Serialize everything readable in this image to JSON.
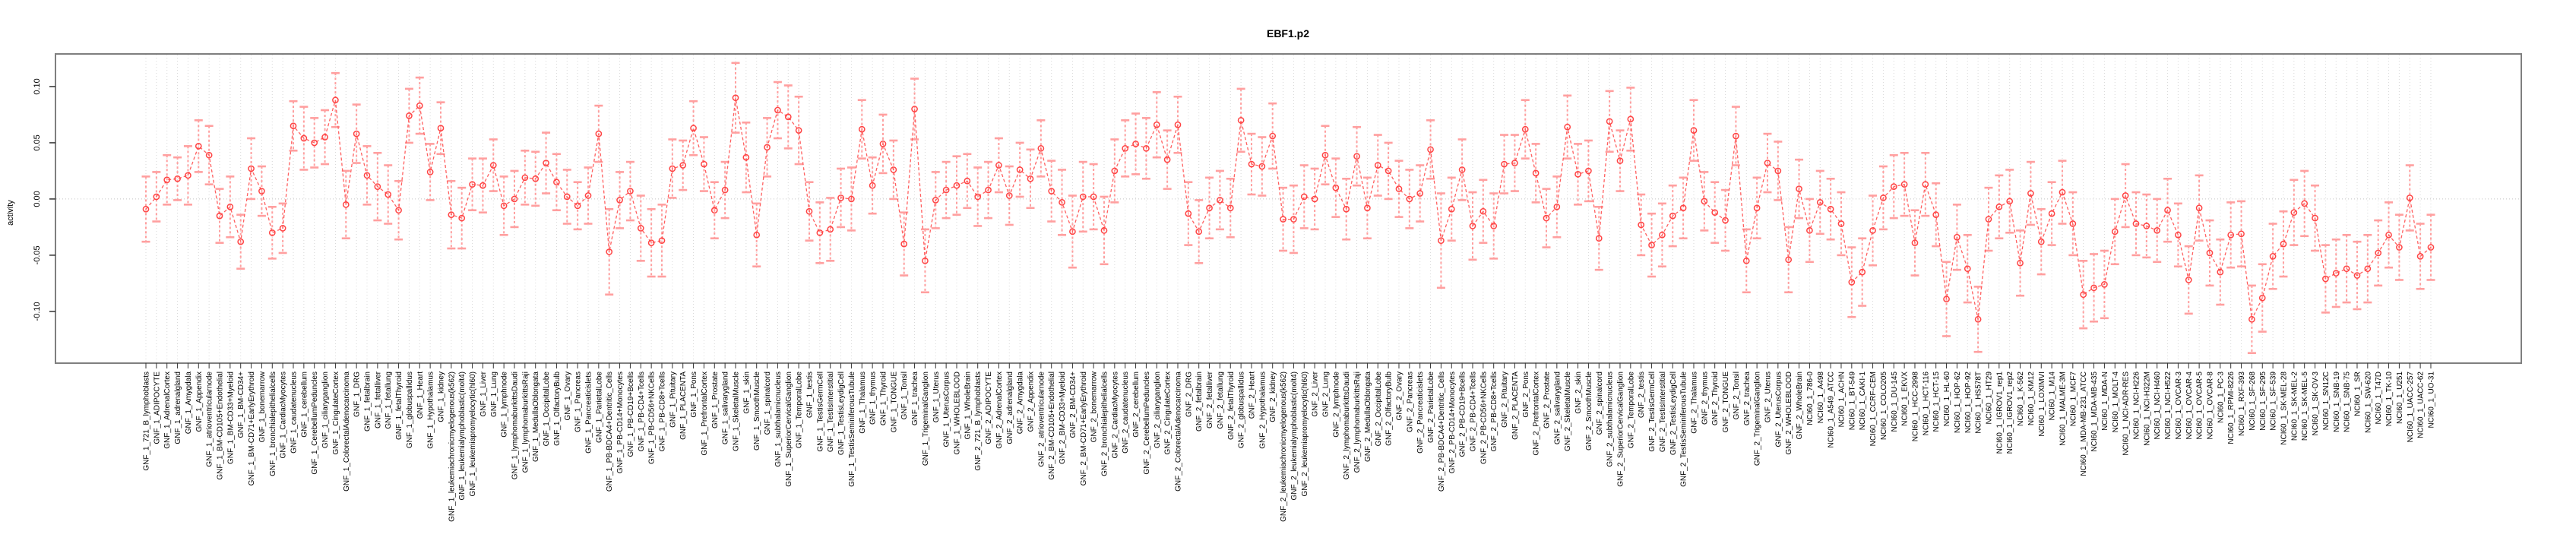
{
  "chart_data": {
    "type": "line",
    "title": "EBF1.p2",
    "ylabel": "activity",
    "xlabel": "",
    "ylim": [
      -0.146,
      0.129
    ],
    "yticks": [
      0.1,
      0.05,
      0.0,
      -0.05,
      -0.1
    ],
    "ytick_labels": [
      "0.10",
      "0.05",
      "0.00",
      "-0.05",
      "-0.10"
    ],
    "grid": "vertical dotted gridline per category; horizontal dotted line at y=0",
    "legend": "none",
    "marker": "open-circle",
    "line_style": "dashed",
    "error_bars": true,
    "colors": {
      "point": "#ff4444",
      "line": "#ff6060",
      "error_bar": "#ff9f9f",
      "box": "#7f7f7f",
      "grid": "#d8d8d8"
    },
    "categories": [
      "GNF_1_721_B_lymphoblasts",
      "GNF_1_ADIPOCYTE",
      "GNF_1_AdrenalCortex",
      "GNF_1_adrenalgland",
      "GNF_1_Amygdala",
      "GNF_1_Appendix",
      "GNF_1_atrioventricularnode",
      "GNF_1_BM-CD105+Endothelial",
      "GNF_1_BM-CD33+Myeloid",
      "GNF_1_BM-CD34+",
      "GNF_1_BM-CD71+EarlyErythroid",
      "GNF_1_bonemarrow",
      "GNF_1_bronchialepithelialcells",
      "GNF_1_CardiacMyocytes",
      "GNF_1_caudatenucleus",
      "GNF_1_cerebellum",
      "GNF_1_CerebellumPeduncles",
      "GNF_1_ciliaryganglion",
      "GNF_1_CingulateCortex",
      "GNF_1_ColorectalAdenocarcinoma",
      "GNF_1_DRG",
      "GNF_1_fetalbrain",
      "GNF_1_fetalliver",
      "GNF_1_fetallung",
      "GNF_1_fetalThyroid",
      "GNF_1_globuspallidus",
      "GNF_1_Heart",
      "GNF_1_Hypothalamus",
      "GNF_1_kidney",
      "GNF_1_leukemiachronicmyelogenous(k562)",
      "GNF_1_leukemialymphoblastic(molt4)",
      "GNF_1_leukemiapromyelocytic(hl60)",
      "GNF_1_Liver",
      "GNF_1_Lung",
      "GNF_1_lymphnode",
      "GNF_1_lymphomaburkittsDaudi",
      "GNF_1_lymphomaburkittsRaji",
      "GNF_1_MedullaOblongata",
      "GNF_1_OccipitalLobe",
      "GNF_1_OlfactoryBulb",
      "GNF_1_Ovary",
      "GNF_1_Pancreas",
      "GNF_1_Pancreaticislets",
      "GNF_1_ParietalLobe",
      "GNF_1_PB-BDCA4+Dentritic_Cells",
      "GNF_1_PB-CD14+Monocytes",
      "GNF_1_PB-CD19+Bcells",
      "GNF_1_PB-CD4+Tcells",
      "GNF_1_PB-CD56+NKCells",
      "GNF_1_PB-CD8+Tcells",
      "GNF_1_Pituitary",
      "GNF_1_PLACENTA",
      "GNF_1_Pons",
      "GNF_1_PrefrontalCortex",
      "GNF_1_Prostate",
      "GNF_1_salivarygland",
      "GNF_1_SkeletalMuscle",
      "GNF_1_skin",
      "GNF_1_SmoothMuscle",
      "GNF_1_spinalcord",
      "GNF_1_subthalamicnucleus",
      "GNF_1_SuperiorCervicalGanglion",
      "GNF_1_TemporalLobe",
      "GNF_1_testis",
      "GNF_1_TestisGermCell",
      "GNF_1_TestisInterstitial",
      "GNF_1_TestisLeydigCell",
      "GNF_1_TestisSeminiferousTubule",
      "GNF_1_Thalamus",
      "GNF_1_thymus",
      "GNF_1_Thyroid",
      "GNF_1_TONGUE",
      "GNF_1_Tonsil",
      "GNF_1_trachea",
      "GNF_1_TrigeminalGanglion",
      "GNF_1_Uterus",
      "GNF_1_UterusCorpus",
      "GNF_1_WHOLEBLOOD",
      "GNF_1_WholeBrain",
      "GNF_2_721_B_lymphoblasts",
      "GNF_2_ADIPOCYTE",
      "GNF_2_AdrenalCortex",
      "GNF_2_adrenalgland",
      "GNF_2_Amygdala",
      "GNF_2_Appendix",
      "GNF_2_atrioventricularnode",
      "GNF_2_BM-CD105+Endothelial",
      "GNF_2_BM-CD33+Myeloid",
      "GNF_2_BM-CD34+",
      "GNF_2_BM-CD71+EarlyErythroid",
      "GNF_2_bonemarrow",
      "GNF_2_bronchialepithelialcells",
      "GNF_2_CardiacMyocytes",
      "GNF_2_caudatenucleus",
      "GNF_2_cerebellum",
      "GNF_2_CerebellumPeduncles",
      "GNF_2_ciliaryganglion",
      "GNF_2_CingulateCortex",
      "GNF_2_ColorectalAdenocarcinoma",
      "GNF_2_DRG",
      "GNF_2_fetalbrain",
      "GNF_2_fetalliver",
      "GNF_2_fetallung",
      "GNF_2_fetalThyroid",
      "GNF_2_globuspallidus",
      "GNF_2_Heart",
      "GNF_2_Hypothalamus",
      "GNF_2_kidney",
      "GNF_2_leukemiachronicmyelogenous(k562)",
      "GNF_2_leukemialymphoblastic(molt4)",
      "GNF_2_leukemiapromyelocytic(hl60)",
      "GNF_2_Liver",
      "GNF_2_Lung",
      "GNF_2_lymphnode",
      "GNF_2_lymphomaburkittsDaudi",
      "GNF_2_lymphomaburkittsRaji",
      "GNF_2_MedullaOblongata",
      "GNF_2_OccipitalLobe",
      "GNF_2_OlfactoryBulb",
      "GNF_2_Ovary",
      "GNF_2_Pancreas",
      "GNF_2_Pancreaticislets",
      "GNF_2_ParietalLobe",
      "GNF_2_PB-BDCA4+Dentritic_Cells",
      "GNF_2_PB-CD14+Monocytes",
      "GNF_2_PB-CD19+Bcells",
      "GNF_2_PB-CD4+Tcells",
      "GNF_2_PB-CD56+NKCells",
      "GNF_2_PB-CD8+Tcells",
      "GNF_2_Pituitary",
      "GNF_2_PLACENTA",
      "GNF_2_Pons",
      "GNF_2_PrefrontalCortex",
      "GNF_2_Prostate",
      "GNF_2_salivarygland",
      "GNF_2_SkeletalMuscle",
      "GNF_2_skin",
      "GNF_2_SmoothMuscle",
      "GNF_2_spinalcord",
      "GNF_2_subthalamicnucleus",
      "GNF_2_SuperiorCervicalGanglion",
      "GNF_2_TemporalLobe",
      "GNF_2_testis",
      "GNF_2_TestisGermCell",
      "GNF_2_TestisInterstitial",
      "GNF_2_TestisLeydigCell",
      "GNF_2_TestisSeminiferousTubule",
      "GNF_2_Thalamus",
      "GNF_2_thymus",
      "GNF_2_Thyroid",
      "GNF_2_TONGUE",
      "GNF_2_Tonsil",
      "GNF_2_trachea",
      "GNF_2_TrigeminalGanglion",
      "GNF_2_Uterus",
      "GNF_2_UterusCorpus",
      "GNF_2_WHOLEBLOOD",
      "GNF_2_WholeBrain",
      "NCI60_1_786-0",
      "NCI60_1_A498",
      "NCI60_1_A549_ATCC",
      "NCI60_1_ACHN",
      "NCI60_1_BT-549",
      "NCI60_1_CAKI-1",
      "NCI60_1_CCRF-CEM",
      "NCI60_1_COLO205",
      "NCI60_1_DU-145",
      "NCI60_1_EKVX",
      "NCI60_1_HCC-2998",
      "NCI60_1_HCT-116",
      "NCI60_1_HCT-15",
      "NCI60_1_HL-60",
      "NCI60_1_HOP-62",
      "NCI60_1_HOP-92",
      "NCI60_1_HS578T",
      "NCI60_1_HT29",
      "NCI60_1_IGROV1_rep1",
      "NCI60_1_IGROV1_rep2",
      "NCI60_1_K-562",
      "NCI60_1_KM12",
      "NCI60_1_LOXIMVI",
      "NCI60_1_M14",
      "NCI60_1_MALME-3M",
      "NCI60_1_MCF7",
      "NCI60_1_MDA-MB-231_ATCC",
      "NCI60_1_MDA-MB-435",
      "NCI60_1_MDA-N",
      "NCI60_1_MOLT-4",
      "NCI60_1_NCI-ADR-RES",
      "NCI60_1_NCI-H226",
      "NCI60_1_NCI-H322M",
      "NCI60_1_NCI-H460",
      "NCI60_1_NCI-H522",
      "NCI60_1_OVCAR-3",
      "NCI60_1_OVCAR-4",
      "NCI60_1_OVCAR-5",
      "NCI60_1_OVCAR-8",
      "NCI60_1_PC-3",
      "NCI60_1_RPMI-8226",
      "NCI60_1_RXF-393",
      "NCI60_1_SF-268",
      "NCI60_1_SF-295",
      "NCI60_1_SF-539",
      "NCI60_1_SK-MEL-28",
      "NCI60_1_SK-MEL-2",
      "NCI60_1_SK-MEL-5",
      "NCI60_1_SK-OV-3",
      "NCI60_1_SN12C",
      "NCI60_1_SNB-19",
      "NCI60_1_SNB-75",
      "NCI60_1_SR",
      "NCI60_1_SW-620",
      "NCI60_1_T47D",
      "NCI60_1_TK-10",
      "NCI60_1_U251",
      "NCI60_1_UACC-257",
      "NCI60_1_UACC-62",
      "NCI60_1_UO-31"
    ],
    "series": [
      {
        "name": "activity",
        "values": [
          -0.009,
          0.002,
          0.017,
          0.018,
          0.021,
          0.047,
          0.039,
          -0.015,
          -0.007,
          -0.038,
          0.027,
          0.007,
          -0.03,
          -0.026,
          0.065,
          0.054,
          0.05,
          0.055,
          0.088,
          -0.005,
          0.058,
          0.021,
          0.011,
          0.004,
          -0.01,
          0.074,
          0.083,
          0.024,
          0.063,
          -0.014,
          -0.017,
          0.013,
          0.012,
          0.03,
          -0.006,
          0.0,
          0.019,
          0.018,
          0.032,
          0.015,
          0.002,
          -0.006,
          0.003,
          0.058,
          -0.047,
          -0.001,
          0.007,
          -0.026,
          -0.039,
          -0.037,
          0.027,
          0.03,
          0.063,
          0.031,
          -0.01,
          0.008,
          0.09,
          0.037,
          -0.032,
          0.046,
          0.079,
          0.073,
          0.061,
          -0.011,
          -0.03,
          -0.027,
          0.001,
          0.0,
          0.062,
          0.012,
          0.049,
          0.026,
          -0.04,
          0.08,
          -0.055,
          -0.001,
          0.008,
          0.012,
          0.016,
          0.002,
          0.008,
          0.03,
          0.003,
          0.026,
          0.018,
          0.045,
          0.007,
          -0.003,
          -0.029,
          0.002,
          0.002,
          -0.028,
          0.025,
          0.045,
          0.049,
          0.045,
          0.066,
          0.035,
          0.066,
          -0.013,
          -0.029,
          -0.008,
          -0.001,
          -0.008,
          0.07,
          0.031,
          0.029,
          0.056,
          -0.018,
          -0.018,
          0.002,
          0.0,
          0.039,
          0.01,
          -0.009,
          0.038,
          -0.008,
          0.03,
          0.025,
          0.009,
          0.0,
          0.005,
          0.044,
          -0.037,
          -0.009,
          0.026,
          -0.024,
          -0.011,
          -0.024,
          0.031,
          0.032,
          0.062,
          0.023,
          -0.017,
          -0.007,
          0.064,
          0.022,
          0.025,
          -0.035,
          0.069,
          0.034,
          0.071,
          -0.023,
          -0.041,
          -0.032,
          -0.015,
          -0.008,
          0.061,
          -0.002,
          -0.012,
          -0.019,
          0.056,
          -0.055,
          -0.008,
          0.032,
          0.025,
          -0.054,
          0.009,
          -0.028,
          -0.003,
          -0.009,
          -0.022,
          -0.074,
          -0.065,
          -0.028,
          0.001,
          0.011,
          0.013,
          -0.039,
          0.013,
          -0.014,
          -0.089,
          -0.034,
          -0.062,
          -0.107,
          -0.018,
          -0.007,
          -0.002,
          -0.057,
          0.005,
          -0.038,
          -0.013,
          0.006,
          -0.022,
          -0.085,
          -0.079,
          -0.076,
          -0.029,
          0.003,
          -0.022,
          -0.024,
          -0.028,
          -0.01,
          -0.032,
          -0.072,
          -0.008,
          -0.048,
          -0.065,
          -0.032,
          -0.031,
          -0.107,
          -0.088,
          -0.051,
          -0.04,
          -0.012,
          -0.004,
          -0.017,
          -0.071,
          -0.066,
          -0.062,
          -0.068,
          -0.062,
          -0.048,
          -0.032,
          -0.043,
          0.001,
          -0.051,
          -0.043
        ],
        "err": [
          0.029,
          0.022,
          0.022,
          0.019,
          0.026,
          0.023,
          0.026,
          0.024,
          0.027,
          0.024,
          0.027,
          0.022,
          0.023,
          0.022,
          0.022,
          0.028,
          0.022,
          0.024,
          0.024,
          0.03,
          0.026,
          0.026,
          0.03,
          0.026,
          0.026,
          0.024,
          0.025,
          0.025,
          0.023,
          0.03,
          0.027,
          0.023,
          0.024,
          0.023,
          0.026,
          0.025,
          0.024,
          0.024,
          0.027,
          0.025,
          0.024,
          0.021,
          0.025,
          0.025,
          0.038,
          0.025,
          0.026,
          0.029,
          0.03,
          0.032,
          0.026,
          0.022,
          0.024,
          0.024,
          0.025,
          0.025,
          0.031,
          0.031,
          0.028,
          0.026,
          0.025,
          0.028,
          0.03,
          0.026,
          0.027,
          0.028,
          0.026,
          0.028,
          0.026,
          0.025,
          0.026,
          0.026,
          0.028,
          0.027,
          0.028,
          0.025,
          0.025,
          0.026,
          0.024,
          0.026,
          0.025,
          0.024,
          0.026,
          0.024,
          0.026,
          0.025,
          0.027,
          0.029,
          0.032,
          0.031,
          0.029,
          0.03,
          0.028,
          0.025,
          0.027,
          0.027,
          0.029,
          0.026,
          0.025,
          0.028,
          0.028,
          0.027,
          0.026,
          0.026,
          0.028,
          0.027,
          0.026,
          0.029,
          0.028,
          0.03,
          0.028,
          0.027,
          0.026,
          0.026,
          0.027,
          0.026,
          0.027,
          0.027,
          0.025,
          0.025,
          0.026,
          0.025,
          0.026,
          0.042,
          0.028,
          0.027,
          0.03,
          0.028,
          0.029,
          0.026,
          0.025,
          0.026,
          0.026,
          0.026,
          0.027,
          0.028,
          0.027,
          0.027,
          0.028,
          0.027,
          0.027,
          0.028,
          0.027,
          0.028,
          0.028,
          0.027,
          0.027,
          0.027,
          0.026,
          0.027,
          0.027,
          0.026,
          0.028,
          0.027,
          0.026,
          0.026,
          0.029,
          0.026,
          0.028,
          0.028,
          0.027,
          0.028,
          0.031,
          0.03,
          0.031,
          0.028,
          0.028,
          0.028,
          0.029,
          0.028,
          0.028,
          0.033,
          0.029,
          0.03,
          0.029,
          0.028,
          0.028,
          0.028,
          0.029,
          0.028,
          0.029,
          0.028,
          0.028,
          0.028,
          0.03,
          0.03,
          0.03,
          0.029,
          0.028,
          0.028,
          0.028,
          0.028,
          0.028,
          0.028,
          0.03,
          0.029,
          0.029,
          0.029,
          0.029,
          0.029,
          0.03,
          0.03,
          0.029,
          0.029,
          0.029,
          0.029,
          0.029,
          0.03,
          0.03,
          0.03,
          0.03,
          0.03,
          0.029,
          0.029,
          0.029,
          0.029,
          0.029,
          0.029
        ]
      }
    ]
  }
}
